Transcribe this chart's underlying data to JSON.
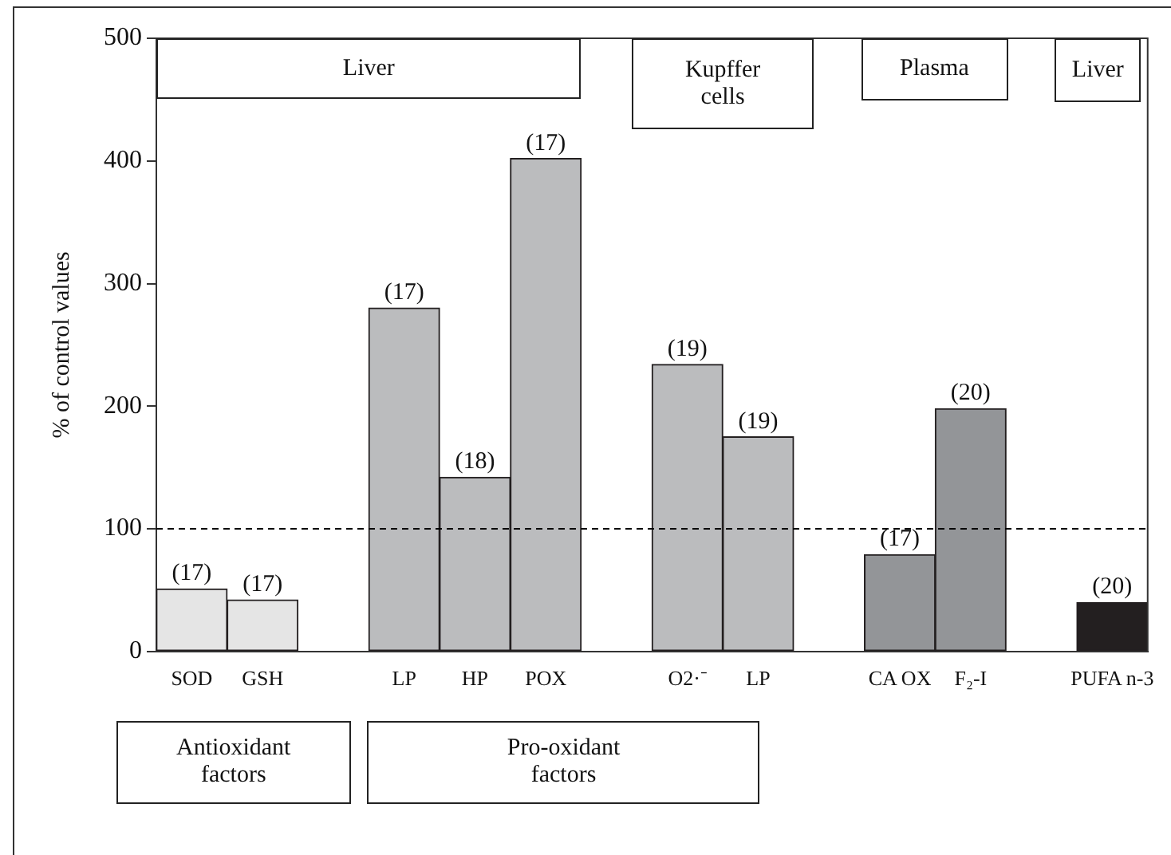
{
  "chart_data": {
    "type": "bar",
    "ylabel": "% of control values",
    "categories": [
      "SOD",
      "GSH",
      null,
      "LP",
      "HP",
      "POX",
      null,
      "O2·⁻",
      "LP",
      null,
      "CA OX",
      "F₂-I",
      null,
      "PUFA n-3"
    ],
    "values": [
      51,
      42,
      null,
      280,
      142,
      402,
      null,
      234,
      175,
      null,
      79,
      198,
      null,
      40
    ],
    "colors": [
      "#e5e5e5",
      "#e5e5e5",
      null,
      "#bbbcbe",
      "#bbbcbe",
      "#bbbcbe",
      null,
      "#bbbcbe",
      "#bbbcbe",
      null,
      "#939598",
      "#939598",
      null,
      "#231f20"
    ],
    "ylim": [
      0,
      500
    ],
    "yticks": [
      0,
      100,
      200,
      300,
      400,
      500
    ],
    "ref_lines": [
      {
        "axis": "y",
        "value": 100,
        "line_style": "dashed",
        "color": "#000000"
      }
    ],
    "annotations": [
      "Liver",
      "Kupffer cells",
      "Plasma",
      "Liver",
      "Antioxidant factors",
      "Pro-oxidant factors",
      {
        "text": "(17)",
        "x": "SOD",
        "y": 51
      },
      {
        "text": "(17)",
        "x": "GSH",
        "y": 42
      },
      {
        "text": "(17)",
        "x": "LP",
        "y": 280
      },
      {
        "text": "(18)",
        "x": "HP",
        "y": 142
      },
      {
        "text": "(17)",
        "x": "POX",
        "y": 402
      },
      {
        "text": "(19)",
        "x": "O2·⁻",
        "y": 234
      },
      {
        "text": "(19)",
        "y": 175
      },
      {
        "text": "(17)",
        "x": "CA OX",
        "y": 79
      },
      {
        "text": "(20)",
        "x": "F₂-I",
        "y": 198
      },
      {
        "text": "(20)",
        "x": "PUFA n-3",
        "y": 40
      }
    ],
    "grid": false,
    "legend": false
  }
}
